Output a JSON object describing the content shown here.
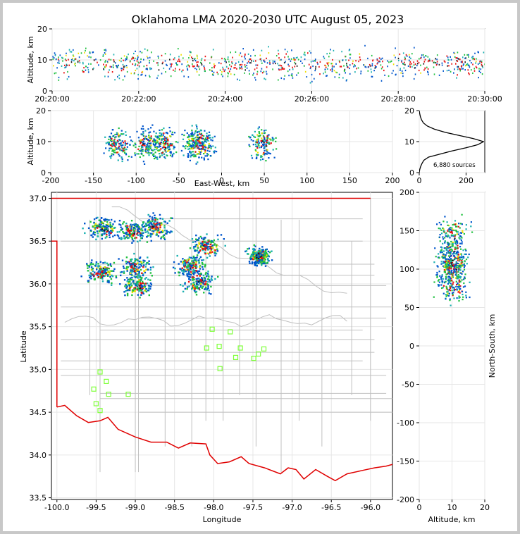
{
  "chart_data": [
    {
      "id": "time_height",
      "type": "scatter",
      "title": "Oklahoma LMA 2020-2030 UTC August 05, 2023",
      "xlabel": "",
      "ylabel": "Altitude, km",
      "x_ticks": [
        "20:20:00",
        "20:22:00",
        "20:24:00",
        "20:26:00",
        "20:28:00",
        "20:30:00"
      ],
      "xlim": [
        "20:20:00",
        "20:30:00"
      ],
      "ylim": [
        0,
        20
      ],
      "y_ticks": [
        0,
        10,
        20
      ],
      "description_series": "VHF lightning sources, altitude vs time, mostly 5-14 km, clustered near 9 km",
      "series": [
        {
          "time_min": [
            0,
            1,
            2,
            3,
            4,
            5,
            6,
            7,
            8,
            9,
            10
          ],
          "altitude_km_center": [
            9,
            9,
            9,
            9,
            10,
            9,
            9,
            9,
            9,
            9,
            9
          ]
        }
      ]
    },
    {
      "id": "ew_height",
      "type": "scatter",
      "xlabel": "East-West, km",
      "ylabel": "Altitude, km",
      "xlim": [
        -200,
        200
      ],
      "ylim": [
        0,
        20
      ],
      "x_ticks": [
        -200,
        -150,
        -100,
        -50,
        0,
        50,
        100,
        150,
        200
      ],
      "y_ticks": [
        0,
        10,
        20
      ],
      "clusters_ew_km": [
        -122,
        -90,
        -68,
        -28,
        47
      ]
    },
    {
      "id": "altitude_histogram",
      "type": "line",
      "xlim": [
        0,
        280
      ],
      "ylim": [
        0,
        20
      ],
      "x_ticks": [
        0,
        200
      ],
      "y_ticks": [
        0,
        10,
        20
      ],
      "annotation": "6,880 sources",
      "altitude_km": [
        0,
        1,
        2,
        3,
        4,
        5,
        6,
        7,
        8,
        9,
        10,
        11,
        12,
        13,
        14,
        15,
        16,
        17,
        18,
        19,
        20
      ],
      "count": [
        0,
        2,
        6,
        12,
        20,
        40,
        90,
        140,
        200,
        250,
        275,
        230,
        170,
        110,
        65,
        35,
        18,
        10,
        5,
        2,
        0
      ]
    },
    {
      "id": "plan_view",
      "type": "scatter",
      "xlabel": "Longitude",
      "ylabel": "Latitude",
      "xlim": [
        -100.07,
        -95.72
      ],
      "ylim": [
        33.48,
        37.07
      ],
      "x_ticks": [
        -100.0,
        -99.5,
        -99.0,
        -98.5,
        -98.0,
        -97.5,
        -97.0,
        -96.5,
        -96.0
      ],
      "y_ticks": [
        33.5,
        34.0,
        34.5,
        35.0,
        35.5,
        36.0,
        36.5,
        37.0
      ],
      "x_tick_labels": [
        "-100.0",
        "-99.5",
        "-99.0",
        "-98.5",
        "-98.0",
        "-97.5",
        "-97.0",
        "-96.5",
        "-96.0"
      ],
      "y_tick_labels": [
        "33.5",
        "34.0",
        "34.5",
        "35.0",
        "35.5",
        "36.0",
        "36.5",
        "37.0"
      ],
      "clusters": [
        {
          "lon": -99.42,
          "lat": 36.66
        },
        {
          "lon": -99.05,
          "lat": 36.62
        },
        {
          "lon": -98.75,
          "lat": 36.68
        },
        {
          "lon": -99.45,
          "lat": 36.15
        },
        {
          "lon": -99.0,
          "lat": 36.2
        },
        {
          "lon": -98.98,
          "lat": 35.98
        },
        {
          "lon": -98.3,
          "lat": 36.22
        },
        {
          "lon": -98.1,
          "lat": 36.45
        },
        {
          "lon": -98.2,
          "lat": 36.02
        },
        {
          "lon": -97.43,
          "lat": 36.33
        }
      ],
      "stations": [
        {
          "lon": -98.02,
          "lat": 35.47
        },
        {
          "lon": -97.79,
          "lat": 35.44
        },
        {
          "lon": -98.09,
          "lat": 35.25
        },
        {
          "lon": -97.93,
          "lat": 35.27
        },
        {
          "lon": -97.66,
          "lat": 35.25
        },
        {
          "lon": -97.36,
          "lat": 35.24
        },
        {
          "lon": -97.72,
          "lat": 35.14
        },
        {
          "lon": -97.49,
          "lat": 35.13
        },
        {
          "lon": -97.43,
          "lat": 35.18
        },
        {
          "lon": -97.92,
          "lat": 35.01
        },
        {
          "lon": -99.45,
          "lat": 34.97
        },
        {
          "lon": -99.37,
          "lat": 34.86
        },
        {
          "lon": -99.53,
          "lat": 34.77
        },
        {
          "lon": -99.34,
          "lat": 34.71
        },
        {
          "lon": -99.09,
          "lat": 34.71
        },
        {
          "lon": -99.5,
          "lat": 34.6
        },
        {
          "lon": -99.45,
          "lat": 34.52
        }
      ]
    },
    {
      "id": "ns_height",
      "type": "scatter",
      "xlabel": "Altitude, km",
      "ylabel": "North-South, km",
      "xlim": [
        0,
        20
      ],
      "ylim": [
        -200,
        200
      ],
      "x_ticks": [
        0,
        10,
        20
      ],
      "y_ticks": [
        -200,
        -150,
        -100,
        -50,
        0,
        50,
        100,
        150,
        200
      ],
      "clusters_ns_km": [
        148,
        120,
        105,
        78
      ]
    }
  ],
  "colors": {
    "state_border": "#e00000",
    "county_lines": "#c0c0c0",
    "station_marker": "#7fff3a",
    "density_low": "#0055cc",
    "density_mid1": "#1ab0b0",
    "density_mid2": "#20c040",
    "density_mid3": "#f0e000",
    "density_high": "#e81010",
    "density_max": "#202020"
  }
}
